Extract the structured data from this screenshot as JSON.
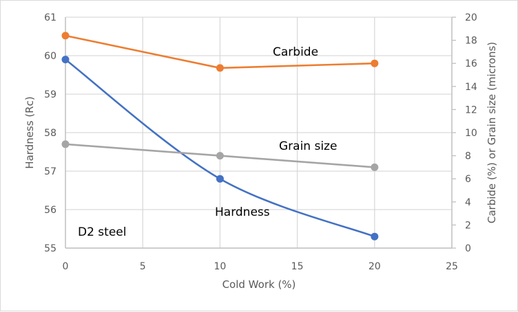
{
  "chart_data": {
    "type": "line",
    "title": "",
    "xlabel": "Cold Work (%)",
    "ylabel": "Hardness (Rc)",
    "y2label": "Carbide (%) or Grain size (microns)",
    "xlim": [
      0,
      25
    ],
    "ylim": [
      55,
      61
    ],
    "y2lim": [
      0,
      20
    ],
    "xticks": [
      "0",
      "5",
      "10",
      "15",
      "20",
      "25"
    ],
    "yticks": [
      "55",
      "56",
      "57",
      "58",
      "59",
      "60",
      "61"
    ],
    "y2ticks": [
      "0",
      "2",
      "4",
      "6",
      "8",
      "10",
      "12",
      "14",
      "16",
      "18",
      "20"
    ],
    "grid": true,
    "legend": "none",
    "series": [
      {
        "name": "Hardness",
        "axis": "left",
        "color": "#4472c4",
        "smooth": true,
        "x": [
          0,
          10,
          20
        ],
        "values": [
          59.9,
          56.8,
          55.3
        ]
      },
      {
        "name": "Carbide",
        "axis": "right",
        "color": "#ed7d31",
        "smooth": false,
        "x": [
          0,
          10,
          20
        ],
        "values": [
          18.4,
          15.6,
          16.0
        ]
      },
      {
        "name": "Grain size",
        "axis": "right",
        "color": "#a5a5a5",
        "smooth": false,
        "x": [
          0,
          10,
          20
        ],
        "values": [
          9.0,
          8.0,
          7.0
        ]
      }
    ],
    "annotations": [
      {
        "text": "Carbide",
        "series": "Carbide"
      },
      {
        "text": "Grain size",
        "series": "Grain size"
      },
      {
        "text": "Hardness",
        "series": "Hardness"
      },
      {
        "text": "D2 steel",
        "series": ""
      }
    ]
  }
}
